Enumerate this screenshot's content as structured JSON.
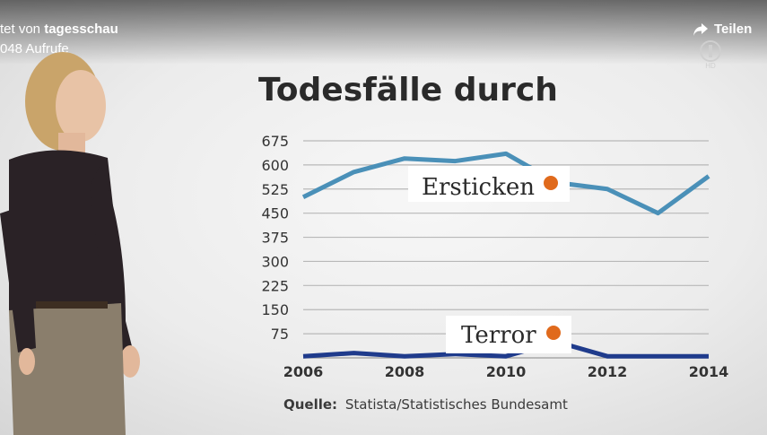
{
  "video": {
    "uploader_prefix": "tet von",
    "uploader_name": "tagesschau",
    "views": "048 Aufrufe",
    "share_label": "Teilen",
    "logo_text": "HD"
  },
  "chart_data": {
    "type": "line",
    "title": "Todesfälle durch",
    "source_label": "Quelle:",
    "source_text": "Statista/Statistisches Bundesamt",
    "xlim": [
      2006,
      2014
    ],
    "ylim": [
      0,
      675
    ],
    "x_ticks": [
      2006,
      2008,
      2010,
      2012,
      2014
    ],
    "y_ticks": [
      75,
      150,
      225,
      300,
      375,
      450,
      525,
      600,
      675
    ],
    "grid": true,
    "series": [
      {
        "name": "Ersticken",
        "color": "#4a90b8",
        "x": [
          2006,
          2007,
          2008,
          2009,
          2010,
          2011,
          2012,
          2013,
          2014
        ],
        "y": [
          500,
          578,
          620,
          612,
          635,
          545,
          525,
          450,
          565
        ]
      },
      {
        "name": "Terror",
        "color": "#1f3b8c",
        "x": [
          2006,
          2007,
          2008,
          2009,
          2010,
          2011,
          2012,
          2013,
          2014
        ],
        "y": [
          5,
          15,
          5,
          12,
          5,
          50,
          5,
          5,
          5
        ]
      }
    ],
    "marker_color": "#e06a1c"
  }
}
